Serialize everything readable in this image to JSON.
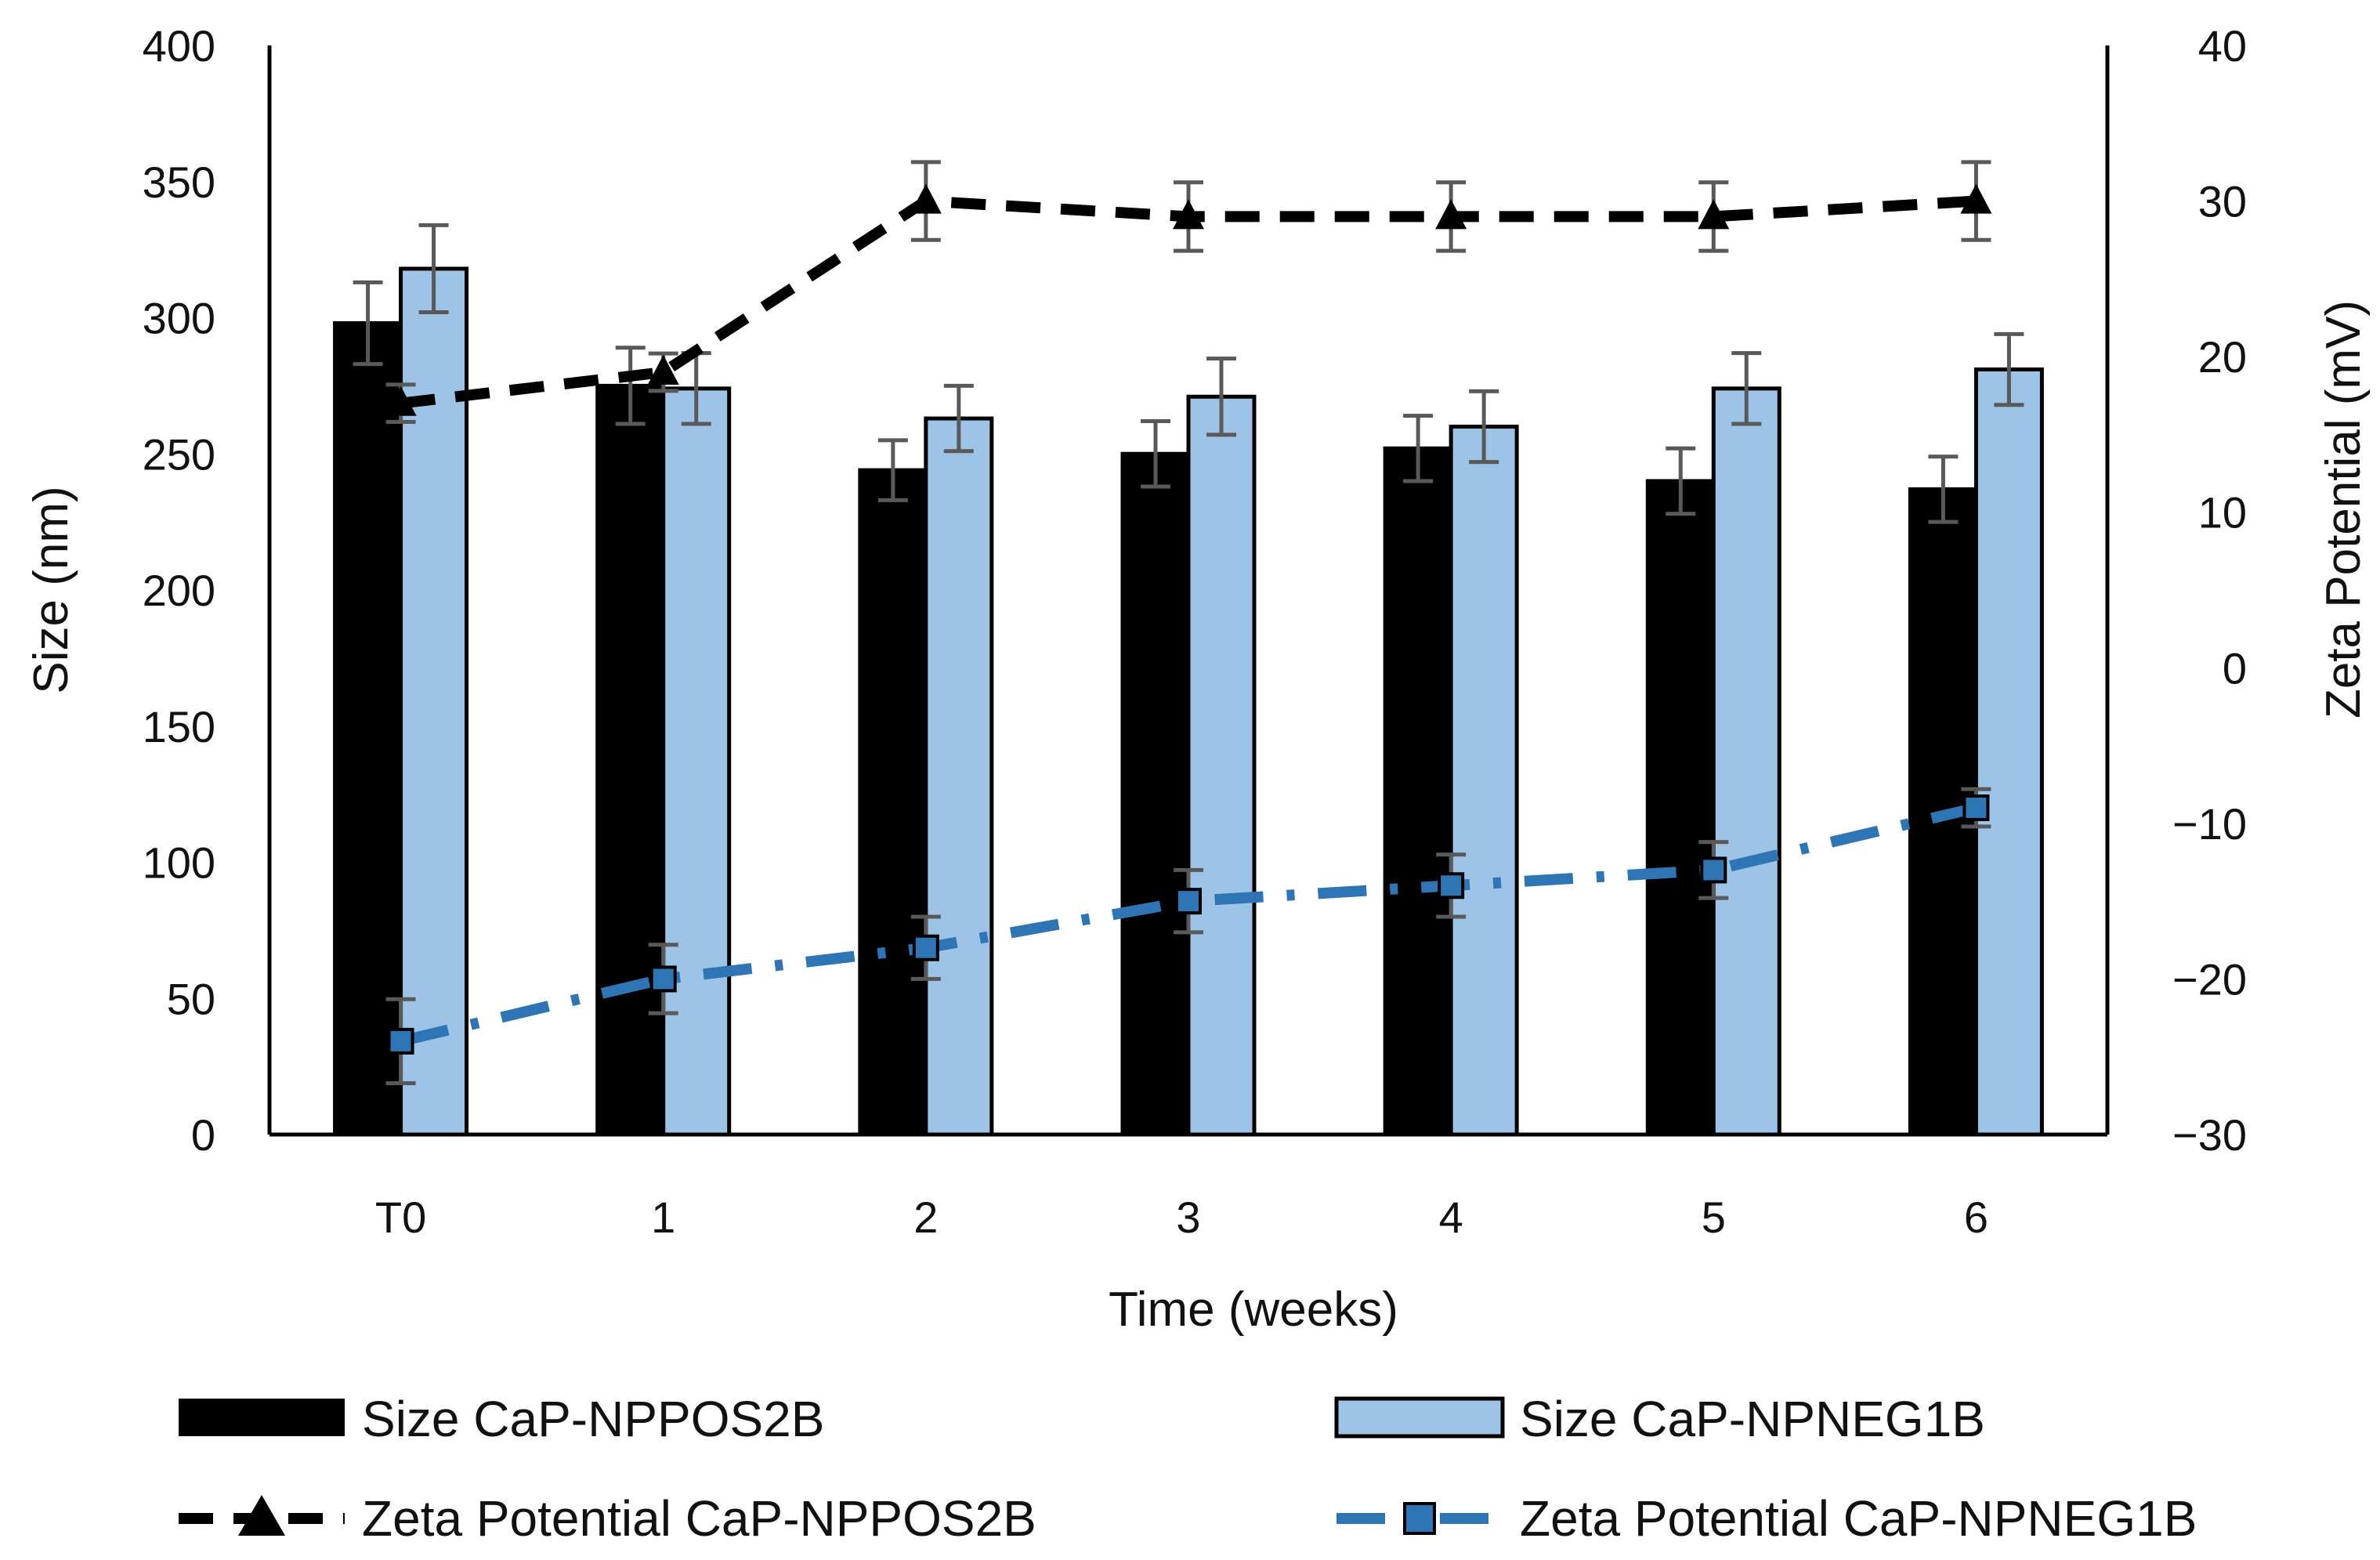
{
  "chart_data": {
    "type": "bar",
    "categories": [
      "T0",
      "1",
      "2",
      "3",
      "4",
      "5",
      "6"
    ],
    "xlabel": "Time (weeks)",
    "ylabel": "Size (nm)",
    "y2label": "Zeta Potential (mV)",
    "ylim": [
      0,
      400
    ],
    "y2lim": [
      -30,
      40
    ],
    "y_ticks": [
      "0",
      "50",
      "100",
      "150",
      "200",
      "250",
      "300",
      "350",
      "400"
    ],
    "y2_ticks": [
      "−30",
      "−20",
      "−10",
      "0",
      "10",
      "20",
      "30",
      "40"
    ],
    "grid": false,
    "legend_position": "bottom",
    "bar_series": [
      {
        "name": "Size CaP-NPPOS2B",
        "color": "#000000",
        "values": [
          298,
          275,
          244,
          250,
          252,
          240,
          237
        ],
        "errors": [
          15,
          14,
          11,
          12,
          12,
          12,
          12
        ]
      },
      {
        "name": "Size CaP-NPNEG1B",
        "color": "#9dc3e6",
        "values": [
          318,
          274,
          263,
          271,
          260,
          274,
          281
        ],
        "errors": [
          16,
          13,
          12,
          14,
          13,
          13,
          13
        ]
      }
    ],
    "line_series": [
      {
        "name": "Zeta Potential CaP-NPPOS2B",
        "color": "#000000",
        "marker": "triangle",
        "axis": "right",
        "values": [
          17,
          19,
          30,
          29,
          29,
          29,
          30
        ],
        "errors": [
          1.2,
          1.2,
          2.5,
          2.2,
          2.2,
          2.2,
          2.5
        ]
      },
      {
        "name": "Zeta Potential CaP-NPNEG1B",
        "color": "#2e75b6",
        "marker": "square",
        "axis": "right",
        "values": [
          -24,
          -20,
          -18,
          -15,
          -14,
          -13,
          -9
        ],
        "errors": [
          2.7,
          2.2,
          2.0,
          2.0,
          2.0,
          1.8,
          1.2
        ]
      }
    ]
  }
}
